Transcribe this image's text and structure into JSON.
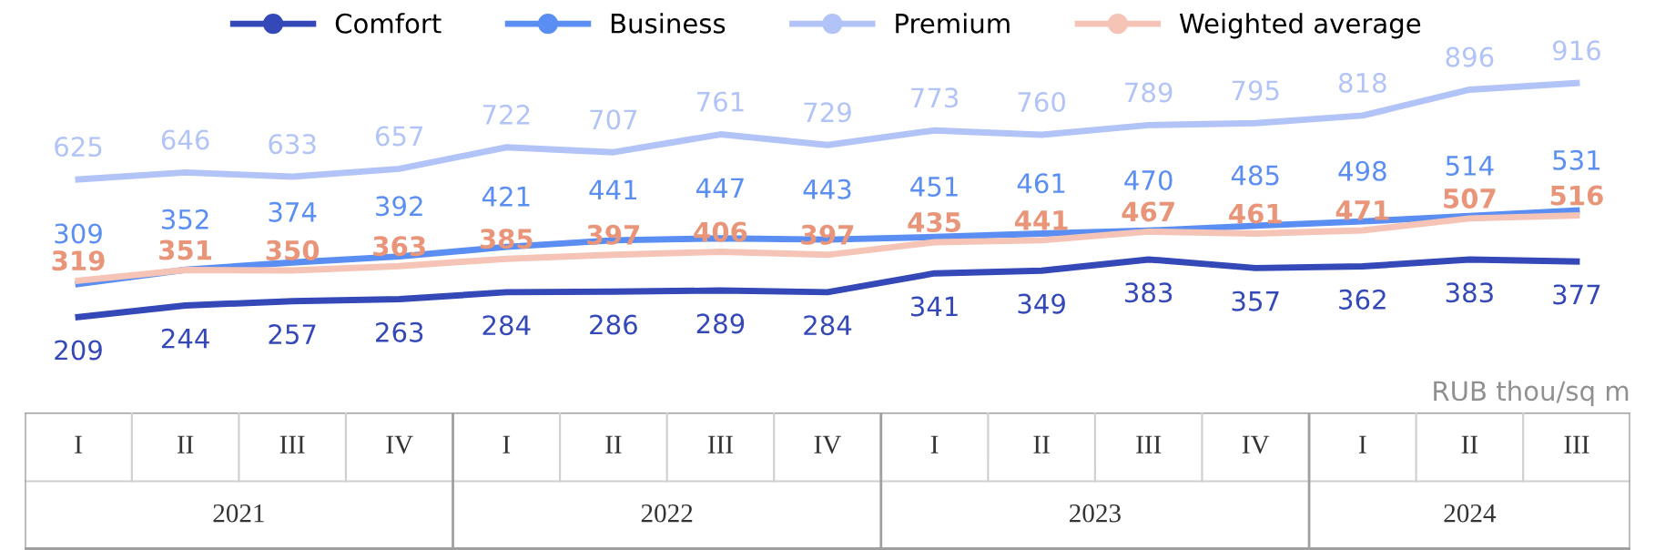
{
  "chart_data": {
    "type": "line",
    "categories": [
      "I",
      "II",
      "III",
      "IV",
      "I",
      "II",
      "III",
      "IV",
      "I",
      "II",
      "III",
      "IV",
      "I",
      "II",
      "III"
    ],
    "series": [
      {
        "name": "Comfort",
        "color": "#3448b8",
        "values": [
          209,
          244,
          257,
          263,
          284,
          286,
          289,
          284,
          341,
          349,
          383,
          357,
          362,
          383,
          377
        ]
      },
      {
        "name": "Business",
        "color": "#5a8ef2",
        "values": [
          309,
          352,
          374,
          392,
          421,
          441,
          447,
          443,
          451,
          461,
          470,
          485,
          498,
          514,
          531
        ]
      },
      {
        "name": "Premium",
        "color": "#b2c4f7",
        "values": [
          625,
          646,
          633,
          657,
          722,
          707,
          761,
          729,
          773,
          760,
          789,
          795,
          818,
          896,
          916
        ]
      },
      {
        "name": "Weighted average",
        "color": "#f6c4b6",
        "values": [
          319,
          351,
          350,
          363,
          385,
          397,
          406,
          397,
          435,
          441,
          467,
          461,
          471,
          507,
          516
        ]
      }
    ],
    "data_labels": true,
    "legend": "top",
    "marker": "none",
    "line_style": "solid",
    "annotations": [
      "RUB thou/sq m",
      "2021",
      "2022",
      "2023",
      "2024"
    ]
  }
}
